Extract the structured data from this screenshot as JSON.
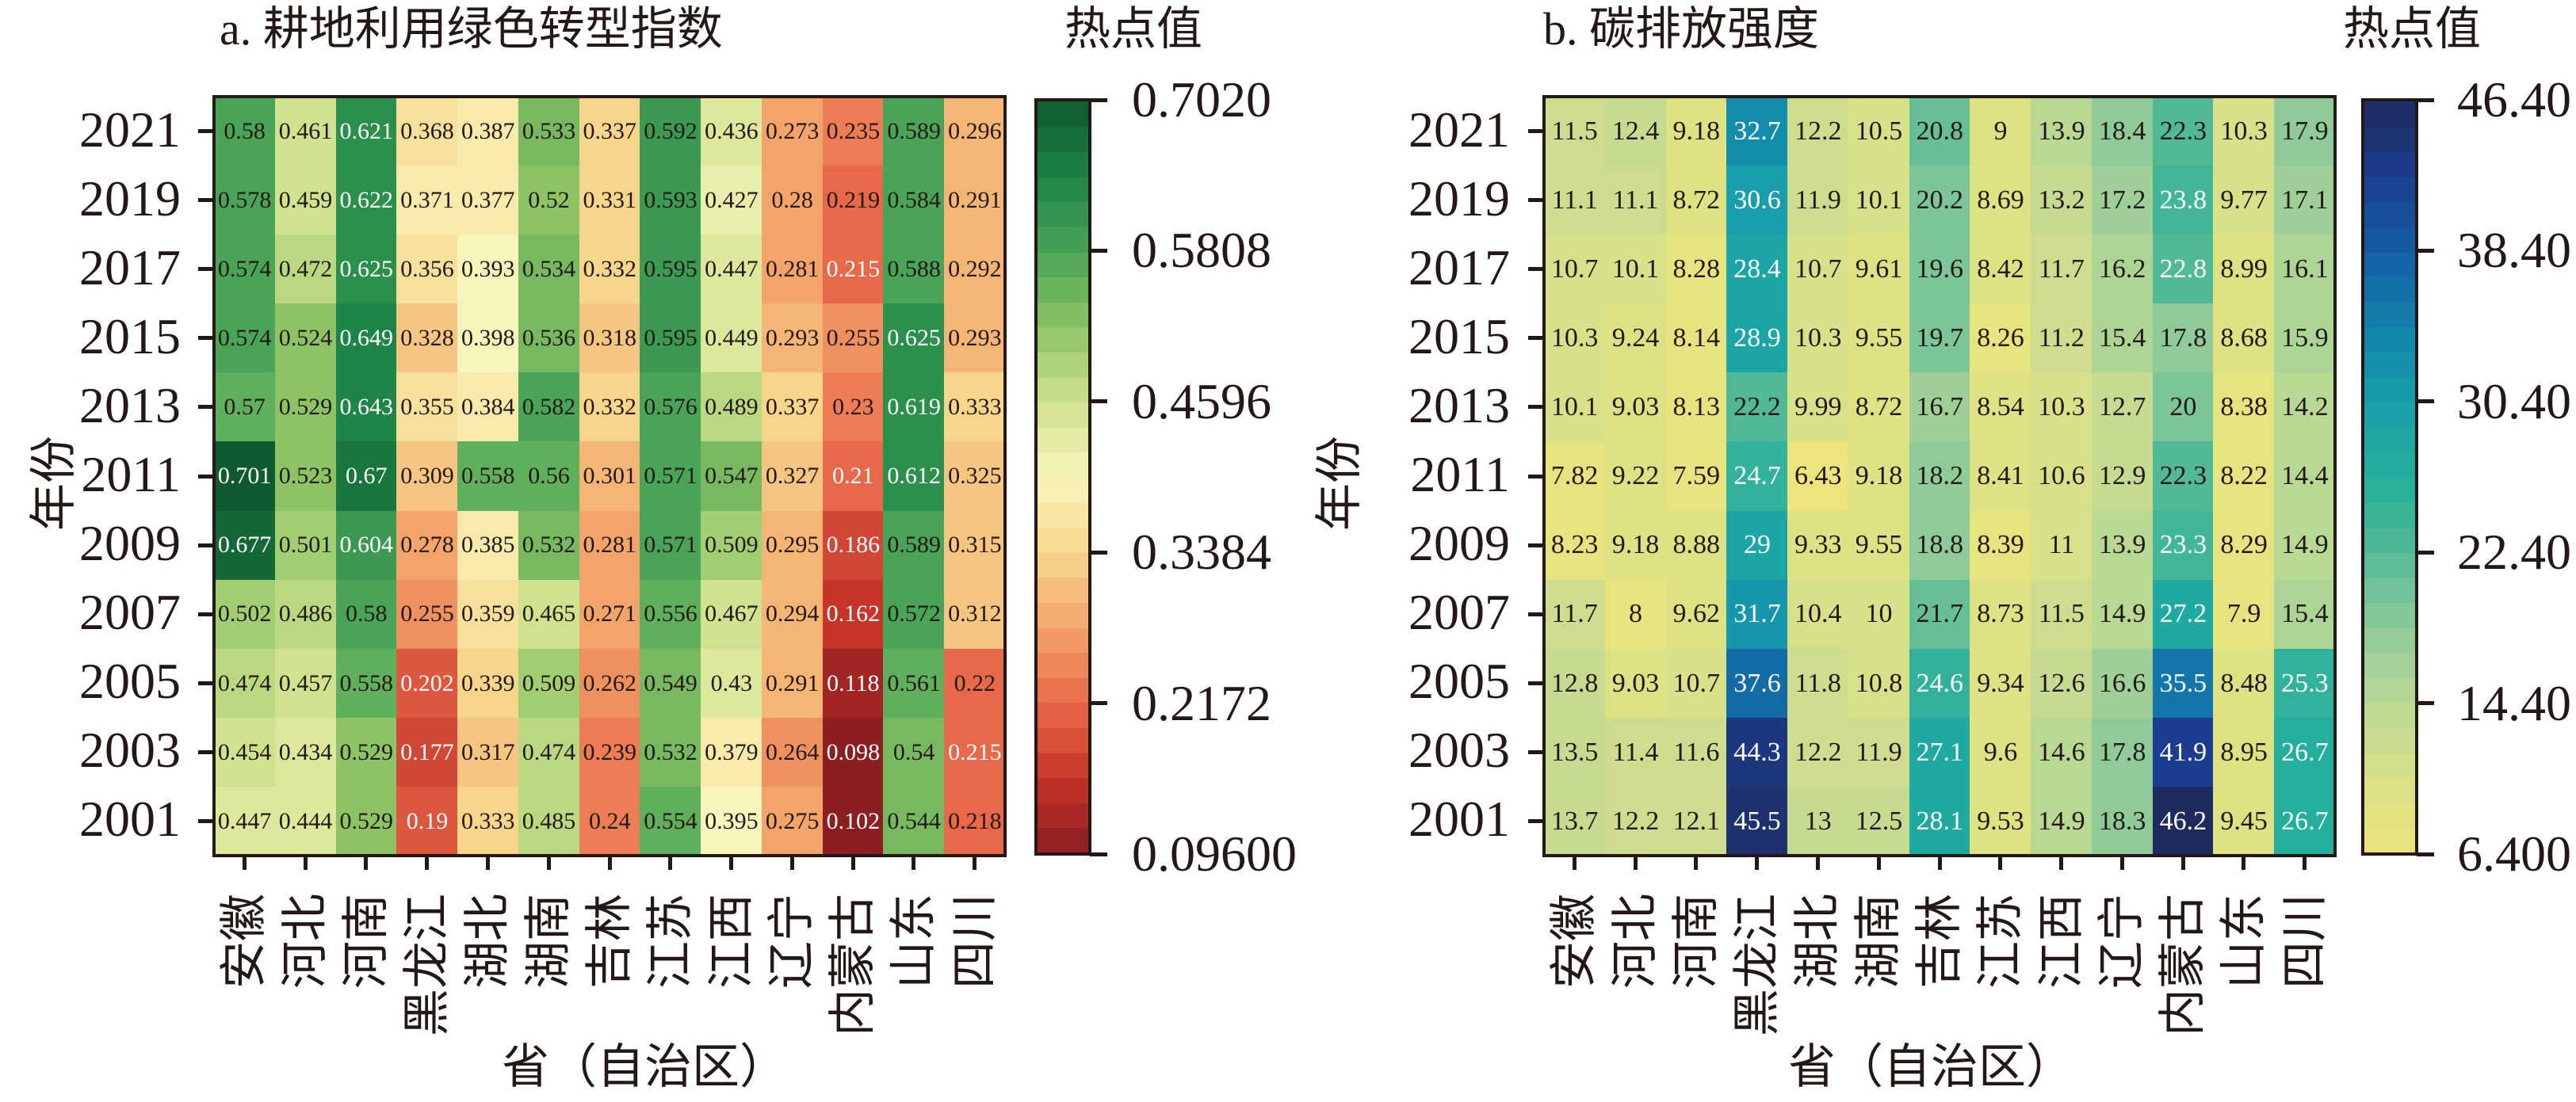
{
  "chart_data": [
    {
      "type": "heatmap",
      "title": "a. 耕地利用绿色转型指数",
      "xlabel": "省（自治区）",
      "ylabel": "年份",
      "colorbar_title": "热点值",
      "colorbar_ticks": [
        "0.7020",
        "0.5808",
        "0.4596",
        "0.3384",
        "0.2172",
        "0.09600"
      ],
      "vrange": [
        0.096,
        0.702
      ],
      "colormap": [
        "#8c1d20",
        "#c7342a",
        "#e8694a",
        "#f3a46a",
        "#f7d68c",
        "#f8f4bb",
        "#cfe28e",
        "#8cc465",
        "#4aa457",
        "#1f8447",
        "#0f5a2f"
      ],
      "categories": [
        "安徽",
        "河北",
        "河南",
        "黑龙江",
        "湖北",
        "湖南",
        "吉林",
        "江苏",
        "江西",
        "辽宁",
        "内蒙古",
        "山东",
        "四川"
      ],
      "years": [
        "2021",
        "2019",
        "2017",
        "2015",
        "2013",
        "2011",
        "2009",
        "2007",
        "2005",
        "2003",
        "2001"
      ],
      "values": [
        [
          0.58,
          0.461,
          0.621,
          0.368,
          0.387,
          0.533,
          0.337,
          0.592,
          0.436,
          0.273,
          0.235,
          0.589,
          0.296
        ],
        [
          0.578,
          0.459,
          0.622,
          0.371,
          0.377,
          0.52,
          0.331,
          0.593,
          0.427,
          0.28,
          0.219,
          0.584,
          0.291
        ],
        [
          0.574,
          0.472,
          0.625,
          0.356,
          0.393,
          0.534,
          0.332,
          0.595,
          0.447,
          0.281,
          0.215,
          0.588,
          0.292
        ],
        [
          0.574,
          0.524,
          0.649,
          0.328,
          0.398,
          0.536,
          0.318,
          0.595,
          0.449,
          0.293,
          0.255,
          0.625,
          0.293
        ],
        [
          0.57,
          0.529,
          0.643,
          0.355,
          0.384,
          0.582,
          0.332,
          0.576,
          0.489,
          0.337,
          0.23,
          0.619,
          0.333
        ],
        [
          0.701,
          0.523,
          0.67,
          0.309,
          0.558,
          0.56,
          0.301,
          0.571,
          0.547,
          0.327,
          0.21,
          0.612,
          0.325
        ],
        [
          0.677,
          0.501,
          0.604,
          0.278,
          0.385,
          0.532,
          0.281,
          0.571,
          0.509,
          0.295,
          0.186,
          0.589,
          0.315
        ],
        [
          0.502,
          0.486,
          0.58,
          0.255,
          0.359,
          0.465,
          0.271,
          0.556,
          0.467,
          0.294,
          0.162,
          0.572,
          0.312
        ],
        [
          0.474,
          0.457,
          0.558,
          0.202,
          0.339,
          0.509,
          0.262,
          0.549,
          0.43,
          0.291,
          0.118,
          0.561,
          0.22
        ],
        [
          0.454,
          0.434,
          0.529,
          0.177,
          0.317,
          0.474,
          0.239,
          0.532,
          0.379,
          0.264,
          0.098,
          0.54,
          0.215
        ],
        [
          0.447,
          0.444,
          0.529,
          0.19,
          0.333,
          0.485,
          0.24,
          0.554,
          0.395,
          0.275,
          0.102,
          0.544,
          0.218
        ]
      ]
    },
    {
      "type": "heatmap",
      "title": "b. 碳排放强度",
      "xlabel": "省（自治区）",
      "ylabel": "年份",
      "colorbar_title": "热点值",
      "colorbar_ticks": [
        "46.40",
        "38.40",
        "30.40",
        "22.40",
        "14.40",
        "6.400"
      ],
      "vrange": [
        6.4,
        46.4
      ],
      "colormap": [
        "#ece47c",
        "#d9e08a",
        "#b9d894",
        "#8fcb98",
        "#52b997",
        "#22af9b",
        "#17a0ab",
        "#1382ac",
        "#145fa3",
        "#1b3d8f",
        "#1f2b5e"
      ],
      "categories": [
        "安徽",
        "河北",
        "河南",
        "黑龙江",
        "湖北",
        "湖南",
        "吉林",
        "江苏",
        "江西",
        "辽宁",
        "内蒙古",
        "山东",
        "四川"
      ],
      "years": [
        "2021",
        "2019",
        "2017",
        "2015",
        "2013",
        "2011",
        "2009",
        "2007",
        "2005",
        "2003",
        "2001"
      ],
      "values": [
        [
          11.5,
          12.4,
          9.18,
          32.7,
          12.2,
          10.5,
          20.8,
          9,
          13.9,
          18.4,
          22.3,
          10.3,
          17.9
        ],
        [
          11.1,
          11.1,
          8.72,
          30.6,
          11.9,
          10.1,
          20.2,
          8.69,
          13.2,
          17.2,
          23.8,
          9.77,
          17.1
        ],
        [
          10.7,
          10.1,
          8.28,
          28.4,
          10.7,
          9.61,
          19.6,
          8.42,
          11.7,
          16.2,
          22.8,
          8.99,
          16.1
        ],
        [
          10.3,
          9.24,
          8.14,
          28.9,
          10.3,
          9.55,
          19.7,
          8.26,
          11.2,
          15.4,
          17.8,
          8.68,
          15.9
        ],
        [
          10.1,
          9.03,
          8.13,
          22.2,
          9.99,
          8.72,
          16.7,
          8.54,
          10.3,
          12.7,
          20,
          8.38,
          14.2
        ],
        [
          7.82,
          9.22,
          7.59,
          24.7,
          6.43,
          9.18,
          18.2,
          8.41,
          10.6,
          12.9,
          22.3,
          8.22,
          14.4
        ],
        [
          8.23,
          9.18,
          8.88,
          29,
          9.33,
          9.55,
          18.8,
          8.39,
          11,
          13.9,
          23.3,
          8.29,
          14.9
        ],
        [
          11.7,
          8,
          9.62,
          31.7,
          10.4,
          10,
          21.7,
          8.73,
          11.5,
          14.9,
          27.2,
          7.9,
          15.4
        ],
        [
          12.8,
          9.03,
          10.7,
          37.6,
          11.8,
          10.8,
          24.6,
          9.34,
          12.6,
          16.6,
          35.5,
          8.48,
          25.3
        ],
        [
          13.5,
          11.4,
          11.6,
          44.3,
          12.2,
          11.9,
          27.1,
          9.6,
          14.6,
          17.8,
          41.9,
          8.95,
          26.7
        ],
        [
          13.7,
          12.2,
          12.1,
          45.5,
          13,
          12.5,
          28.1,
          9.53,
          14.9,
          18.3,
          46.2,
          9.45,
          26.7
        ]
      ]
    }
  ]
}
